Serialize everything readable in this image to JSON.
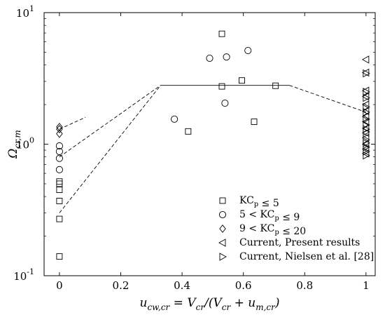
{
  "chart_data": {
    "type": "scatter",
    "title": "",
    "xlabel": "u_{cw,cr} = V_{cr}/(V_{cr} + u_{m,cr})",
    "ylabel": "Ω_{cr,m}",
    "xlim": [
      -0.05,
      1.03
    ],
    "ylim": [
      0.1,
      10
    ],
    "yscale": "log",
    "grid": false,
    "legend_position": "bottom-right",
    "x_ticks": [
      {
        "value": 0,
        "label": "0"
      },
      {
        "value": 0.2,
        "label": "0.2"
      },
      {
        "value": 0.4,
        "label": "0.4"
      },
      {
        "value": 0.6,
        "label": "0.6"
      },
      {
        "value": 0.8,
        "label": "0.8"
      },
      {
        "value": 1,
        "label": "1"
      }
    ],
    "y_ticks": [
      {
        "value": 0.1,
        "base": "10",
        "exp": "-1"
      },
      {
        "value": 1,
        "base": "10",
        "exp": "0"
      },
      {
        "value": 10,
        "base": "10",
        "exp": "1"
      }
    ],
    "series": [
      {
        "name": "KC_p ≤ 5",
        "marker": "square",
        "points": [
          [
            0,
            0.14
          ],
          [
            0,
            0.27
          ],
          [
            0,
            0.37
          ],
          [
            0,
            0.45
          ],
          [
            0,
            0.5
          ],
          [
            0,
            0.52
          ],
          [
            0.42,
            1.25
          ],
          [
            0.53,
            2.75
          ],
          [
            0.53,
            6.9
          ],
          [
            0.595,
            3.05
          ],
          [
            0.635,
            1.48
          ],
          [
            0.705,
            2.78
          ]
        ]
      },
      {
        "name": "5 < KC_p ≤ 9",
        "marker": "circle",
        "points": [
          [
            0,
            0.64
          ],
          [
            0,
            0.78
          ],
          [
            0,
            0.88
          ],
          [
            0,
            0.97
          ],
          [
            0.375,
            1.55
          ],
          [
            0.49,
            4.5
          ],
          [
            0.54,
            2.05
          ],
          [
            0.545,
            4.6
          ],
          [
            0.615,
            5.15
          ]
        ]
      },
      {
        "name": "9 < KC_p ≤ 20",
        "marker": "diamond",
        "points": [
          [
            0,
            1.2
          ],
          [
            0,
            1.3
          ],
          [
            0,
            1.35
          ]
        ]
      },
      {
        "name": "Current, Present results",
        "marker": "triangle-left",
        "points": [
          [
            1,
            0.85
          ],
          [
            1,
            0.92
          ],
          [
            1,
            1.0
          ],
          [
            1,
            1.12
          ],
          [
            1,
            1.22
          ],
          [
            1,
            1.32
          ],
          [
            1,
            1.48
          ],
          [
            1,
            1.62
          ],
          [
            1,
            1.78
          ],
          [
            1,
            2.0
          ],
          [
            1,
            2.3
          ],
          [
            1,
            2.55
          ],
          [
            1,
            3.5
          ],
          [
            1,
            4.4
          ]
        ]
      },
      {
        "name": "Current, Nielsen et al. [28]",
        "marker": "triangle-right",
        "points": [
          [
            1,
            0.82
          ],
          [
            1,
            0.88
          ],
          [
            1,
            0.95
          ],
          [
            1,
            1.02
          ],
          [
            1,
            1.08
          ],
          [
            1,
            1.24
          ],
          [
            1,
            1.3
          ],
          [
            1,
            1.4
          ],
          [
            1,
            1.55
          ],
          [
            1,
            1.75
          ],
          [
            1,
            1.92
          ],
          [
            1,
            2.25
          ],
          [
            1,
            2.5
          ],
          [
            1,
            3.45
          ]
        ]
      }
    ],
    "lines": [
      {
        "style": "dashed",
        "points": [
          [
            0,
            0.3
          ],
          [
            0.33,
            2.8
          ]
        ]
      },
      {
        "style": "dashed",
        "points": [
          [
            0,
            0.8
          ],
          [
            0.33,
            2.8
          ]
        ]
      },
      {
        "style": "dashed",
        "points": [
          [
            0,
            1.3
          ],
          [
            0.085,
            1.6
          ]
        ]
      },
      {
        "style": "solid",
        "points": [
          [
            0.33,
            2.8
          ],
          [
            0.75,
            2.8
          ]
        ]
      },
      {
        "style": "dashed",
        "points": [
          [
            0.75,
            2.8
          ],
          [
            1.0,
            1.75
          ]
        ]
      }
    ],
    "legend": [
      {
        "label": "KC_p ≤ 5",
        "marker": "square"
      },
      {
        "label": "5 < KC_p ≤ 9",
        "marker": "circle"
      },
      {
        "label": "9 < KC_p ≤ 20",
        "marker": "diamond"
      },
      {
        "label": "Current, Present results",
        "marker": "triangle-left"
      },
      {
        "label": "Current, Nielsen et al. [28]",
        "marker": "triangle-right"
      }
    ]
  }
}
